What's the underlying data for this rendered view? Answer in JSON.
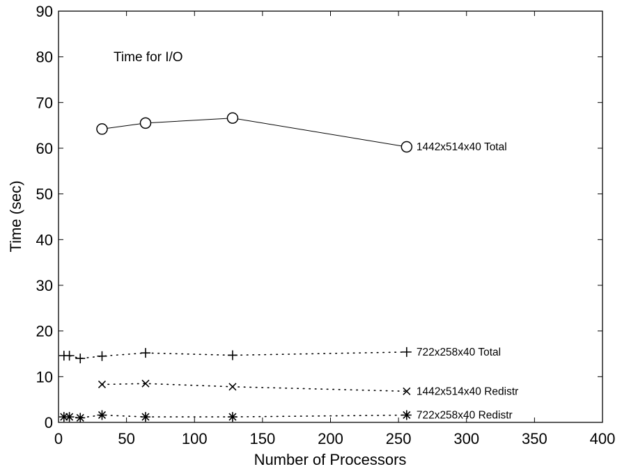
{
  "chart_data": {
    "type": "line",
    "title": "Time for I/O",
    "xlabel": "Number of Processors",
    "ylabel": "Time (sec)",
    "xlim": [
      0,
      400
    ],
    "ylim": [
      0,
      90
    ],
    "xticks": [
      0,
      50,
      100,
      150,
      200,
      250,
      300,
      350,
      400
    ],
    "yticks": [
      0,
      10,
      20,
      30,
      40,
      50,
      60,
      70,
      80,
      90
    ],
    "grid": false,
    "series": [
      {
        "name": "1442x514x40 Total",
        "marker": "o",
        "line": "solid",
        "x": [
          32,
          64,
          128,
          256
        ],
        "y": [
          64.2,
          65.5,
          66.6,
          60.3
        ]
      },
      {
        "name": "722x258x40 Total",
        "marker": "+",
        "line": "dotted",
        "x": [
          4,
          8,
          16,
          32,
          64,
          128,
          256
        ],
        "y": [
          14.6,
          14.6,
          14.0,
          14.5,
          15.2,
          14.7,
          15.4
        ]
      },
      {
        "name": "1442x514x40 Redistr",
        "marker": "x",
        "line": "dotted",
        "x": [
          32,
          64,
          128,
          256
        ],
        "y": [
          8.3,
          8.5,
          7.8,
          6.8
        ]
      },
      {
        "name": "722x258x40 Redistr",
        "marker": "*",
        "line": "dotted",
        "x": [
          4,
          8,
          16,
          32,
          64,
          128,
          256
        ],
        "y": [
          1.2,
          1.2,
          1.0,
          1.6,
          1.2,
          1.2,
          1.6
        ]
      }
    ]
  }
}
